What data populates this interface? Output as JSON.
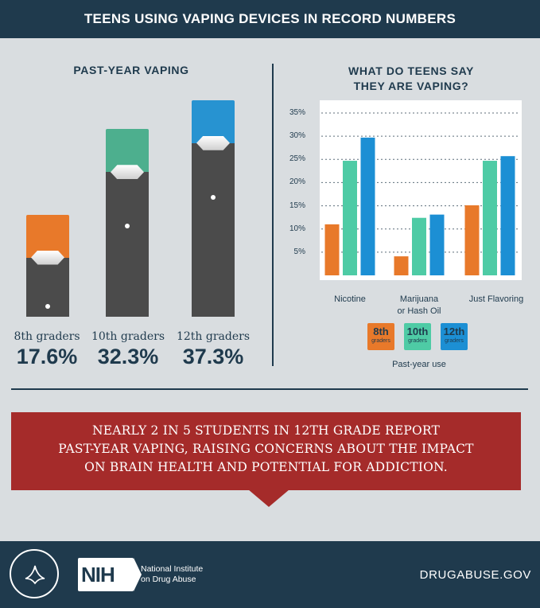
{
  "banner": {
    "title": "TEENS USING VAPING DEVICES IN RECORD NUMBERS"
  },
  "left_panel": {
    "title": "PAST-YEAR VAPING",
    "grades": [
      {
        "label": "8th graders",
        "value_text": "17.6%",
        "value": 17.6,
        "color": "#e8792a"
      },
      {
        "label": "10th graders",
        "value_text": "32.3%",
        "value": 32.3,
        "color": "#4daf8e"
      },
      {
        "label": "12th graders",
        "value_text": "37.3%",
        "value": 37.3,
        "color": "#2793d1"
      }
    ]
  },
  "right_panel": {
    "title_line1": "WHAT DO TEENS SAY",
    "title_line2": "THEY ARE VAPING?"
  },
  "chart_data": {
    "type": "bar",
    "categories": [
      "Nicotine",
      "Marijuana or Hash Oil",
      "Just Flavoring"
    ],
    "category_lines": [
      [
        "Nicotine"
      ],
      [
        "Marijuana",
        "or Hash Oil"
      ],
      [
        "Just Flavoring"
      ]
    ],
    "series": [
      {
        "name": "8th graders",
        "color": "#e8792a",
        "values": [
          11.0,
          4.1,
          15.1
        ]
      },
      {
        "name": "10th graders",
        "color": "#4ecba5",
        "values": [
          24.7,
          12.4,
          24.7
        ]
      },
      {
        "name": "12th graders",
        "color": "#1c8fd4",
        "values": [
          29.7,
          13.1,
          25.7
        ]
      }
    ],
    "yticks": [
      "35%",
      "30%",
      "25%",
      "20%",
      "15%",
      "10%",
      "5%"
    ],
    "ytick_values": [
      35,
      30,
      25,
      20,
      15,
      10,
      5
    ],
    "ylim": [
      0,
      35
    ],
    "grid": true,
    "legend_position": "bottom",
    "legend": [
      {
        "main": "8th",
        "sub": "graders",
        "color": "#e8792a"
      },
      {
        "main": "10th",
        "sub": "graders",
        "color": "#4ecba5"
      },
      {
        "main": "12th",
        "sub": "graders",
        "color": "#1c8fd4"
      }
    ],
    "legend_caption": "Past-year use"
  },
  "callout": {
    "line1": "NEARLY 2 IN 5 STUDENTS IN 12TH GRADE REPORT",
    "line2": "PAST-YEAR VAPING, RAISING CONCERNS ABOUT THE IMPACT",
    "line3": "ON BRAIN HEALTH AND POTENTIAL FOR ADDICTION."
  },
  "footer": {
    "nih_logo_text": "NIH",
    "institute_line1": "National Institute",
    "institute_line2": "on Drug Abuse",
    "website": "DRUGABUSE.GOV",
    "seal_icon": "hhs-eagle-seal"
  }
}
